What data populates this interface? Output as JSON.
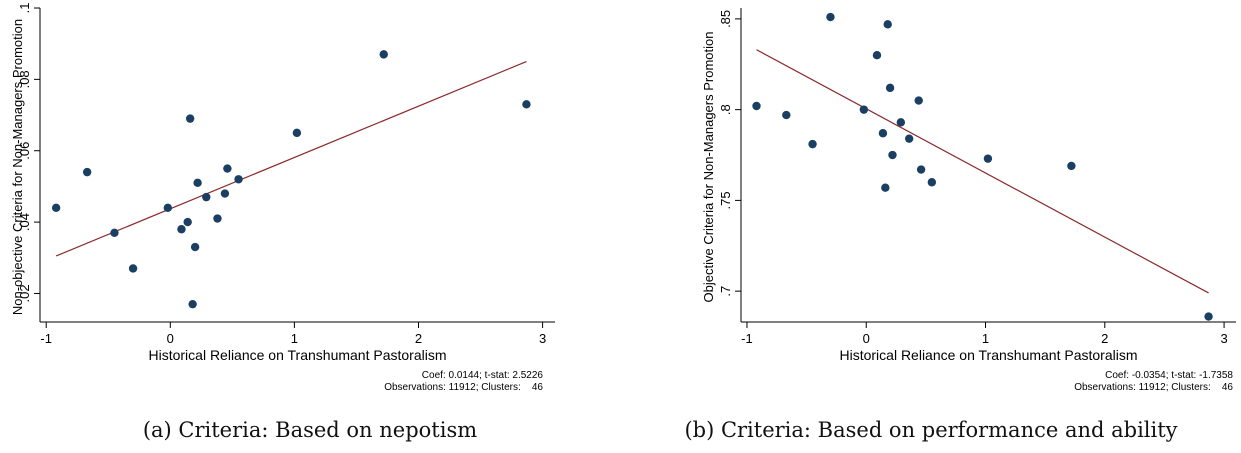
{
  "chart_data": [
    {
      "type": "scatter",
      "caption": "(a) Criteria: Based on nepotism",
      "xlabel": "Historical Reliance on Transhumant Pastoralism",
      "ylabel": "Non-objective Criteria for Non-Managers Promotion",
      "xlim": [
        -1.05,
        3.1
      ],
      "ylim": [
        0.012,
        0.1
      ],
      "xticks": [
        -1,
        0,
        1,
        2,
        3
      ],
      "xtick_labels": [
        "-1",
        "0",
        "1",
        "2",
        "3"
      ],
      "yticks": [
        0.02,
        0.04,
        0.06,
        0.08,
        0.1
      ],
      "ytick_labels": [
        ".02",
        ".04",
        ".06",
        ".08",
        ".1"
      ],
      "grid": false,
      "points": {
        "x": [
          -0.92,
          -0.67,
          -0.45,
          -0.3,
          -0.02,
          0.09,
          0.14,
          0.16,
          0.18,
          0.2,
          0.22,
          0.29,
          0.38,
          0.44,
          0.46,
          0.55,
          1.02,
          1.72,
          2.87
        ],
        "y": [
          0.044,
          0.054,
          0.037,
          0.027,
          0.044,
          0.038,
          0.04,
          0.069,
          0.017,
          0.033,
          0.051,
          0.047,
          0.041,
          0.048,
          0.055,
          0.052,
          0.065,
          0.087,
          0.073
        ]
      },
      "fit_line": {
        "x": [
          -0.92,
          2.87
        ],
        "y": [
          0.0305,
          0.085
        ]
      },
      "note_lines": [
        "Coef: 0.0144; t-stat: 2.5226",
        "Observations: 11912; Clusters:    46"
      ],
      "colors": {
        "points": "#1a3f63",
        "line": "#8b2a2a",
        "axis": "#000000"
      }
    },
    {
      "type": "scatter",
      "caption": "(b) Criteria: Based on performance and ability",
      "xlabel": "Historical Reliance on Transhumant Pastoralism",
      "ylabel": "Objective Criteria for Non-Managers Promotion",
      "xlim": [
        -1.05,
        3.1
      ],
      "ylim": [
        0.683,
        0.856
      ],
      "xticks": [
        -1,
        0,
        1,
        2,
        3
      ],
      "xtick_labels": [
        "-1",
        "0",
        "1",
        "2",
        "3"
      ],
      "yticks": [
        0.7,
        0.75,
        0.8,
        0.85
      ],
      "ytick_labels": [
        ".7",
        ".75",
        ".8",
        ".85"
      ],
      "grid": false,
      "points": {
        "x": [
          -0.92,
          -0.67,
          -0.45,
          -0.3,
          -0.02,
          0.09,
          0.14,
          0.16,
          0.18,
          0.2,
          0.22,
          0.29,
          0.36,
          0.44,
          0.46,
          0.55,
          1.02,
          1.72,
          2.87
        ],
        "y": [
          0.802,
          0.797,
          0.781,
          0.851,
          0.8,
          0.83,
          0.787,
          0.757,
          0.847,
          0.812,
          0.775,
          0.793,
          0.784,
          0.805,
          0.767,
          0.76,
          0.773,
          0.769,
          0.686
        ]
      },
      "fit_line": {
        "x": [
          -0.92,
          2.87
        ],
        "y": [
          0.833,
          0.699
        ]
      },
      "note_lines": [
        "Coef: -0.0354; t-stat: -1.7358",
        "Observations: 11912; Clusters:    46"
      ],
      "colors": {
        "points": "#1a3f63",
        "line": "#8b2a2a",
        "axis": "#000000"
      }
    }
  ]
}
